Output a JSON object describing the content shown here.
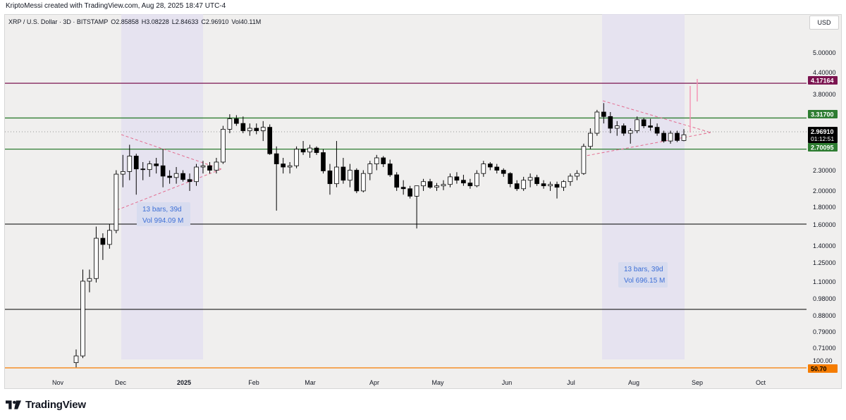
{
  "header": {
    "credit": "KriptoMessi created with TradingView.com, Aug 28, 2025 18:47 UTC-4"
  },
  "legend": {
    "symbol": "XRP / U.S. Dollar · 3D · BITSTAMP",
    "open": "O2.85858",
    "high": "H3.08228",
    "low": "L2.84633",
    "close": "C2.96910",
    "volume": "Vol40.11M"
  },
  "currency_button": "USD",
  "branding": {
    "logo_text": "TradingView"
  },
  "colors": {
    "up_body": "#ffffff",
    "down_body": "#000000",
    "candle_border": "#000000",
    "purple_line": "#7b1450",
    "green_line": "#2e7d32",
    "black_line": "#000000",
    "orange_line": "#f57c00",
    "highlight_band": "#e3dff0",
    "pattern_line": "#e36c8f",
    "measure_text": "#3d6fd6",
    "measure_bg": "#d8dcef"
  },
  "chart_data": {
    "type": "candlestick",
    "scale": "log",
    "ylim": [
      0.665,
      6.0
    ],
    "price_ticks": [
      "5.00000",
      "4.40000",
      "3.80000",
      "2.30000",
      "2.00000",
      "1.80000",
      "1.60000",
      "1.40000",
      "1.25000",
      "1.10000",
      "0.98000",
      "0.88000",
      "0.79000",
      "0.71000"
    ],
    "time_labels": [
      "Nov",
      "Dec",
      "2025",
      "Feb",
      "Mar",
      "Apr",
      "May",
      "Jun",
      "Jul",
      "Aug",
      "Sep",
      "Oct"
    ],
    "bottom_axis_label": "100.00",
    "horizontal_levels": [
      {
        "label": "4.17164",
        "price": 4.17164,
        "color": "#7b1450",
        "text_color": "#ffffff"
      },
      {
        "label": "3.31700",
        "price": 3.317,
        "color": "#2e7d32",
        "text_color": "#ffffff"
      },
      {
        "label": "2.70095",
        "price": 2.70095,
        "color": "#2e7d32",
        "text_color": "#ffffff"
      },
      {
        "price": 1.6,
        "color": "#000000"
      },
      {
        "price": 0.91,
        "color": "#000000"
      },
      {
        "label": "50.70",
        "color": "#f57c00",
        "text_color": "#000000"
      }
    ],
    "last_price": {
      "label": "2.96910",
      "countdown": "01:12:51"
    },
    "measures": [
      {
        "bars": "13 bars, 39d",
        "volume": "Vol 994.09 M"
      },
      {
        "bars": "13 bars, 39d",
        "volume": "Vol 696.15 M"
      }
    ],
    "candles": [
      {
        "o": 0.66,
        "h": 0.72,
        "l": 0.64,
        "c": 0.69
      },
      {
        "o": 0.69,
        "h": 1.22,
        "l": 0.68,
        "c": 1.13
      },
      {
        "o": 1.13,
        "h": 1.22,
        "l": 1.05,
        "c": 1.15
      },
      {
        "o": 1.15,
        "h": 1.62,
        "l": 1.12,
        "c": 1.5
      },
      {
        "o": 1.5,
        "h": 1.55,
        "l": 1.3,
        "c": 1.44
      },
      {
        "o": 1.44,
        "h": 1.65,
        "l": 1.4,
        "c": 1.58
      },
      {
        "o": 1.58,
        "h": 2.35,
        "l": 1.55,
        "c": 2.29
      },
      {
        "o": 2.29,
        "h": 2.6,
        "l": 2.1,
        "c": 2.33
      },
      {
        "o": 2.33,
        "h": 2.78,
        "l": 2.2,
        "c": 2.58
      },
      {
        "o": 2.58,
        "h": 2.62,
        "l": 2.0,
        "c": 2.37
      },
      {
        "o": 2.37,
        "h": 2.48,
        "l": 2.2,
        "c": 2.36
      },
      {
        "o": 2.36,
        "h": 2.5,
        "l": 2.25,
        "c": 2.45
      },
      {
        "o": 2.45,
        "h": 2.55,
        "l": 2.3,
        "c": 2.42
      },
      {
        "o": 2.42,
        "h": 2.7,
        "l": 2.1,
        "c": 2.26
      },
      {
        "o": 2.26,
        "h": 2.35,
        "l": 2.15,
        "c": 2.24
      },
      {
        "o": 2.24,
        "h": 2.4,
        "l": 2.15,
        "c": 2.3
      },
      {
        "o": 2.3,
        "h": 2.35,
        "l": 2.18,
        "c": 2.21
      },
      {
        "o": 2.21,
        "h": 2.3,
        "l": 2.05,
        "c": 2.18
      },
      {
        "o": 2.18,
        "h": 2.45,
        "l": 2.12,
        "c": 2.4
      },
      {
        "o": 2.4,
        "h": 2.5,
        "l": 2.3,
        "c": 2.42
      },
      {
        "o": 2.42,
        "h": 2.48,
        "l": 2.3,
        "c": 2.35
      },
      {
        "o": 2.35,
        "h": 2.55,
        "l": 2.3,
        "c": 2.48
      },
      {
        "o": 2.48,
        "h": 3.15,
        "l": 2.45,
        "c": 3.08
      },
      {
        "o": 3.08,
        "h": 3.4,
        "l": 3.0,
        "c": 3.3
      },
      {
        "o": 3.3,
        "h": 3.38,
        "l": 3.15,
        "c": 3.2
      },
      {
        "o": 3.2,
        "h": 3.35,
        "l": 3.0,
        "c": 3.05
      },
      {
        "o": 3.05,
        "h": 3.2,
        "l": 2.95,
        "c": 3.1
      },
      {
        "o": 3.1,
        "h": 3.2,
        "l": 2.98,
        "c": 3.05
      },
      {
        "o": 3.05,
        "h": 3.25,
        "l": 2.85,
        "c": 3.12
      },
      {
        "o": 3.12,
        "h": 3.18,
        "l": 2.6,
        "c": 2.62
      },
      {
        "o": 2.62,
        "h": 2.75,
        "l": 1.8,
        "c": 2.45
      },
      {
        "o": 2.45,
        "h": 2.55,
        "l": 2.3,
        "c": 2.4
      },
      {
        "o": 2.4,
        "h": 2.48,
        "l": 2.3,
        "c": 2.42
      },
      {
        "o": 2.42,
        "h": 2.75,
        "l": 2.38,
        "c": 2.7
      },
      {
        "o": 2.7,
        "h": 2.85,
        "l": 2.6,
        "c": 2.65
      },
      {
        "o": 2.65,
        "h": 2.78,
        "l": 2.55,
        "c": 2.72
      },
      {
        "o": 2.72,
        "h": 2.75,
        "l": 2.6,
        "c": 2.64
      },
      {
        "o": 2.64,
        "h": 2.7,
        "l": 2.3,
        "c": 2.34
      },
      {
        "o": 2.34,
        "h": 2.45,
        "l": 2.0,
        "c": 2.15
      },
      {
        "o": 2.15,
        "h": 2.85,
        "l": 2.1,
        "c": 2.4
      },
      {
        "o": 2.4,
        "h": 2.55,
        "l": 2.15,
        "c": 2.2
      },
      {
        "o": 2.2,
        "h": 2.45,
        "l": 2.1,
        "c": 2.35
      },
      {
        "o": 2.35,
        "h": 2.38,
        "l": 2.02,
        "c": 2.05
      },
      {
        "o": 2.05,
        "h": 2.35,
        "l": 2.03,
        "c": 2.3
      },
      {
        "o": 2.3,
        "h": 2.5,
        "l": 2.2,
        "c": 2.45
      },
      {
        "o": 2.45,
        "h": 2.6,
        "l": 2.35,
        "c": 2.55
      },
      {
        "o": 2.55,
        "h": 2.58,
        "l": 2.4,
        "c": 2.45
      },
      {
        "o": 2.45,
        "h": 2.52,
        "l": 2.25,
        "c": 2.28
      },
      {
        "o": 2.28,
        "h": 2.32,
        "l": 2.05,
        "c": 2.1
      },
      {
        "o": 2.1,
        "h": 2.2,
        "l": 2.0,
        "c": 2.08
      },
      {
        "o": 2.08,
        "h": 2.12,
        "l": 1.95,
        "c": 1.98
      },
      {
        "o": 1.98,
        "h": 2.1,
        "l": 1.6,
        "c": 2.12
      },
      {
        "o": 2.12,
        "h": 2.22,
        "l": 2.05,
        "c": 2.18
      },
      {
        "o": 2.18,
        "h": 2.22,
        "l": 2.08,
        "c": 2.1
      },
      {
        "o": 2.1,
        "h": 2.16,
        "l": 2.05,
        "c": 2.12
      },
      {
        "o": 2.12,
        "h": 2.2,
        "l": 2.06,
        "c": 2.14
      },
      {
        "o": 2.14,
        "h": 2.3,
        "l": 2.1,
        "c": 2.25
      },
      {
        "o": 2.25,
        "h": 2.32,
        "l": 2.15,
        "c": 2.2
      },
      {
        "o": 2.2,
        "h": 2.28,
        "l": 2.12,
        "c": 2.16
      },
      {
        "o": 2.16,
        "h": 2.22,
        "l": 2.08,
        "c": 2.12
      },
      {
        "o": 2.12,
        "h": 2.35,
        "l": 2.1,
        "c": 2.3
      },
      {
        "o": 2.3,
        "h": 2.5,
        "l": 2.25,
        "c": 2.45
      },
      {
        "o": 2.45,
        "h": 2.48,
        "l": 2.35,
        "c": 2.4
      },
      {
        "o": 2.4,
        "h": 2.45,
        "l": 2.3,
        "c": 2.35
      },
      {
        "o": 2.35,
        "h": 2.38,
        "l": 2.25,
        "c": 2.3
      },
      {
        "o": 2.3,
        "h": 2.32,
        "l": 2.1,
        "c": 2.15
      },
      {
        "o": 2.15,
        "h": 2.2,
        "l": 2.05,
        "c": 2.08
      },
      {
        "o": 2.08,
        "h": 2.25,
        "l": 2.05,
        "c": 2.2
      },
      {
        "o": 2.2,
        "h": 2.3,
        "l": 2.1,
        "c": 2.24
      },
      {
        "o": 2.24,
        "h": 2.28,
        "l": 2.12,
        "c": 2.15
      },
      {
        "o": 2.15,
        "h": 2.2,
        "l": 2.08,
        "c": 2.12
      },
      {
        "o": 2.12,
        "h": 2.18,
        "l": 2.05,
        "c": 2.14
      },
      {
        "o": 2.14,
        "h": 2.18,
        "l": 1.95,
        "c": 2.1
      },
      {
        "o": 2.1,
        "h": 2.2,
        "l": 2.05,
        "c": 2.18
      },
      {
        "o": 2.18,
        "h": 2.3,
        "l": 2.12,
        "c": 2.26
      },
      {
        "o": 2.26,
        "h": 2.35,
        "l": 2.2,
        "c": 2.3
      },
      {
        "o": 2.3,
        "h": 2.8,
        "l": 2.28,
        "c": 2.75
      },
      {
        "o": 2.75,
        "h": 3.1,
        "l": 2.7,
        "c": 3.0
      },
      {
        "o": 3.0,
        "h": 3.5,
        "l": 2.95,
        "c": 3.45
      },
      {
        "o": 3.45,
        "h": 3.66,
        "l": 3.2,
        "c": 3.35
      },
      {
        "o": 3.35,
        "h": 3.45,
        "l": 3.0,
        "c": 3.1
      },
      {
        "o": 3.1,
        "h": 3.25,
        "l": 2.95,
        "c": 3.15
      },
      {
        "o": 3.15,
        "h": 3.2,
        "l": 2.95,
        "c": 3.0
      },
      {
        "o": 3.0,
        "h": 3.1,
        "l": 2.8,
        "c": 3.05
      },
      {
        "o": 3.05,
        "h": 3.35,
        "l": 3.0,
        "c": 3.28
      },
      {
        "o": 3.28,
        "h": 3.32,
        "l": 3.1,
        "c": 3.15
      },
      {
        "o": 3.15,
        "h": 3.3,
        "l": 3.05,
        "c": 3.12
      },
      {
        "o": 3.12,
        "h": 3.2,
        "l": 2.95,
        "c": 3.0
      },
      {
        "o": 3.0,
        "h": 3.05,
        "l": 2.82,
        "c": 2.85
      },
      {
        "o": 2.85,
        "h": 3.05,
        "l": 2.8,
        "c": 3.0
      },
      {
        "o": 3.0,
        "h": 3.05,
        "l": 2.83,
        "c": 2.86
      },
      {
        "o": 2.85858,
        "h": 3.08228,
        "l": 2.84633,
        "c": 2.9691
      }
    ]
  }
}
